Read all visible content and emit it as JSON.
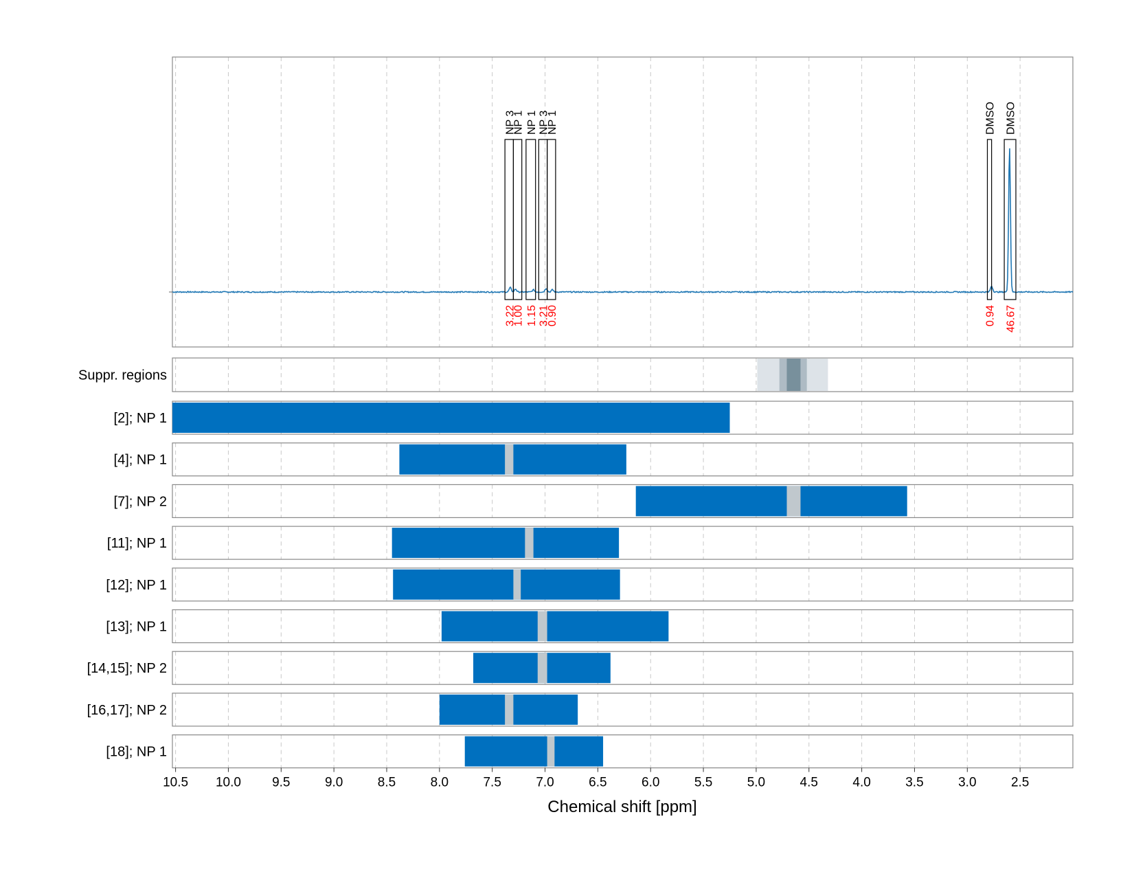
{
  "chart_data": {
    "type": "nmr-spectrum-with-region-bars",
    "x_axis": {
      "label": "Chemical shift [ppm]",
      "range": [
        10.53,
        2.0
      ],
      "reversed": true,
      "ticks": [
        10.5,
        10.0,
        9.5,
        9.0,
        8.5,
        8.0,
        7.5,
        7.0,
        6.5,
        6.0,
        5.5,
        5.0,
        4.5,
        4.0,
        3.5,
        3.0,
        2.5
      ],
      "tick_labels": [
        "10.5",
        "10.0",
        "9.5",
        "9.0",
        "8.5",
        "8.0",
        "7.5",
        "7.0",
        "6.5",
        "6.0",
        "5.5",
        "5.0",
        "4.5",
        "4.0",
        "3.5",
        "3.0",
        "2.5"
      ]
    },
    "grid": true,
    "spectrum": {
      "color": "#1f77b4",
      "peaks": [
        {
          "ppm": 7.33,
          "height": 0.03
        },
        {
          "ppm": 7.28,
          "height": 0.02
        },
        {
          "ppm": 7.11,
          "height": 0.015
        },
        {
          "ppm": 6.99,
          "height": 0.025
        },
        {
          "ppm": 6.93,
          "height": 0.015
        },
        {
          "ppm": 2.77,
          "height": 0.04
        },
        {
          "ppm": 2.6,
          "height": 1.0
        }
      ]
    },
    "integrated_regions": [
      {
        "label": "NP 3",
        "from": 7.38,
        "to": 7.3,
        "integral": "3.22"
      },
      {
        "label": "NP 1",
        "from": 7.3,
        "to": 7.22,
        "integral": "1.00"
      },
      {
        "label": "NP 1",
        "from": 7.18,
        "to": 7.09,
        "integral": "1.15"
      },
      {
        "label": "NP 3",
        "from": 7.06,
        "to": 6.98,
        "integral": "3.21"
      },
      {
        "label": "NP 1",
        "from": 6.98,
        "to": 6.9,
        "integral": "0.90"
      },
      {
        "label": "DMSO",
        "from": 2.81,
        "to": 2.77,
        "integral": "0.94"
      },
      {
        "label": "DMSO",
        "from": 2.65,
        "to": 2.54,
        "integral": "46.67"
      }
    ],
    "suppressed_regions": {
      "label": "Suppr. regions",
      "bands": [
        {
          "from": 4.99,
          "to": 4.32,
          "shade": "#dde3e8"
        },
        {
          "from": 4.78,
          "to": 4.52,
          "shade": "#aebbc4"
        },
        {
          "from": 4.71,
          "to": 4.58,
          "shade": "#78909c"
        }
      ]
    },
    "bar_rows": [
      {
        "label": "[2]; NP 1",
        "from": 10.53,
        "to": 5.25,
        "gap": null
      },
      {
        "label": "[4]; NP 1",
        "from": 8.38,
        "to": 6.23,
        "gap": [
          7.38,
          7.3
        ]
      },
      {
        "label": "[7]; NP 2",
        "from": 6.14,
        "to": 3.57,
        "gap": [
          4.71,
          4.58
        ]
      },
      {
        "label": "[11]; NP 1",
        "from": 8.45,
        "to": 6.3,
        "gap": [
          7.19,
          7.11
        ]
      },
      {
        "label": "[12]; NP 1",
        "from": 8.44,
        "to": 6.29,
        "gap": [
          7.3,
          7.23
        ]
      },
      {
        "label": "[13]; NP 1",
        "from": 7.98,
        "to": 5.83,
        "gap": [
          7.07,
          6.98
        ]
      },
      {
        "label": "[14,15]; NP 2",
        "from": 7.68,
        "to": 6.38,
        "gap": [
          7.07,
          6.98
        ]
      },
      {
        "label": "[16,17]; NP 2",
        "from": 8.0,
        "to": 6.69,
        "gap": [
          7.38,
          7.3
        ]
      },
      {
        "label": "[18]; NP 1",
        "from": 7.76,
        "to": 6.45,
        "gap": [
          6.98,
          6.91
        ]
      }
    ],
    "colors": {
      "bar": "#0070bf",
      "gap": "#c0c8cd",
      "integral_label": "#ff0000",
      "frame": "#888888",
      "grid": "#c8c8c8"
    }
  }
}
